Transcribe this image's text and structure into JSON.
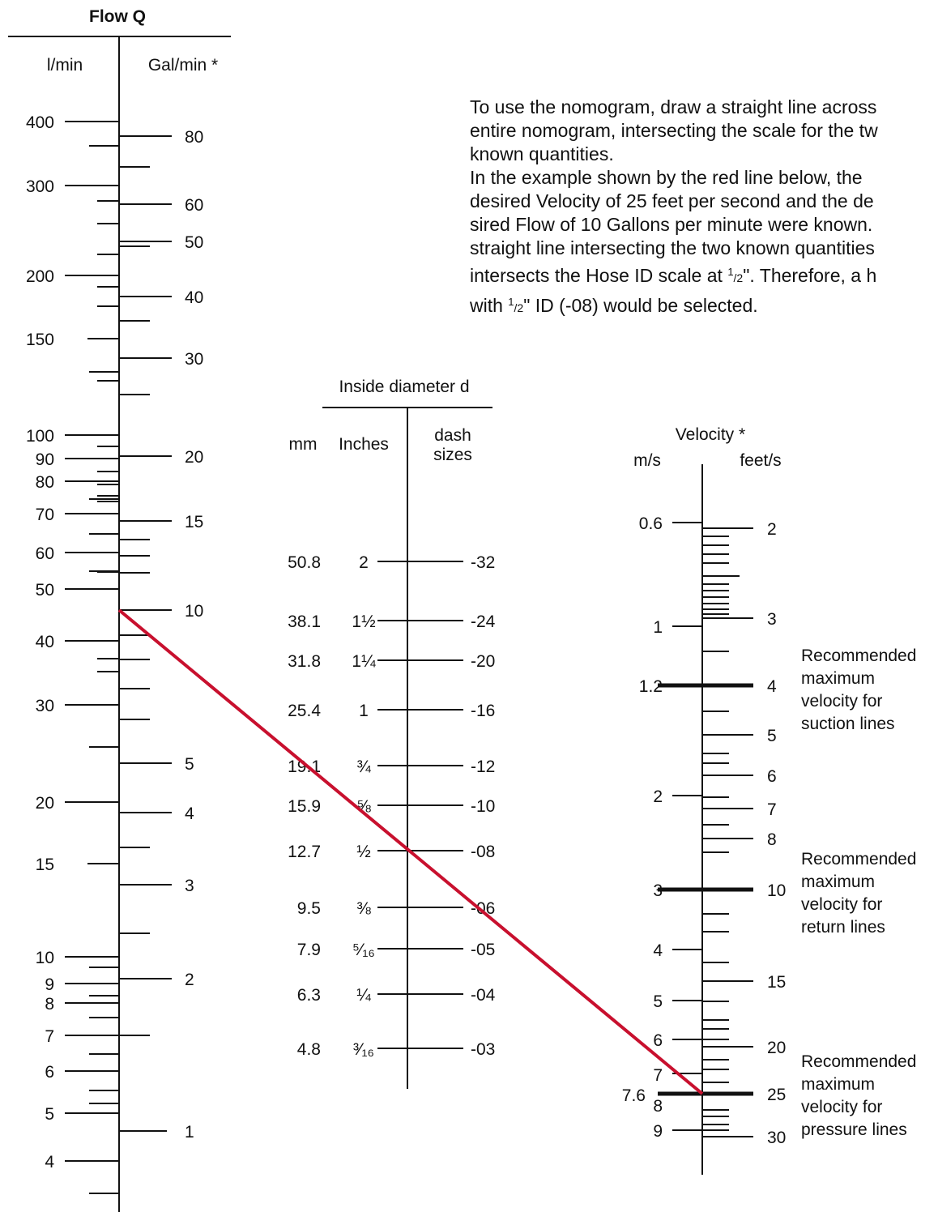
{
  "description": {
    "part1": "To use the nomogram, draw a straight line across\nentire nomogram, intersecting the scale for the tw\nknown quantities.\nIn the example shown by the red line below, the\ndesired Velocity of 25 feet per second and the de\nsired Flow of 10 Gallons per minute were known.\nstraight line intersecting the two known quantities\nintersects the Hose ID scale at ",
    "frac1_num": "1",
    "frac1_den": "/2",
    "part2": "\". Therefore, a h\nwith ",
    "frac2_num": "1",
    "frac2_den": "/2",
    "part3": "\" ID (-08) would be selected."
  },
  "flow_scale": {
    "title": "Flow Q",
    "left_unit": "l/min",
    "right_unit": "Gal/min *",
    "lmin_labels": [
      "400",
      "300",
      "200",
      "150",
      "100",
      "90",
      "80",
      "70",
      "60",
      "50",
      "40",
      "30",
      "20",
      "15",
      "10",
      "9",
      "8",
      "7",
      "6",
      "5",
      "4"
    ],
    "galmin_labels": [
      "80",
      "60",
      "50",
      "40",
      "30",
      "20",
      "15",
      "10",
      "5",
      "4",
      "3",
      "2",
      "1"
    ]
  },
  "diameter_scale": {
    "title": "Inside diameter d",
    "col_mm": "mm",
    "col_inches": "Inches",
    "col_dash_1": "dash",
    "col_dash_2": "sizes",
    "mm": [
      "50.8",
      "38.1",
      "31.8",
      "25.4",
      "19.1",
      "15.9",
      "12.7",
      "9.5",
      "7.9",
      "6.3",
      "4.8"
    ],
    "inches": [
      "2",
      "1½",
      "1¼",
      "1",
      "¾",
      "⅝",
      "½",
      "⅜",
      "⁵⁄₁₆",
      "¼",
      "³⁄₁₆"
    ],
    "dash": [
      "-32",
      "-24",
      "-20",
      "-16",
      "-12",
      "-10",
      "-08",
      "-06",
      "-05",
      "-04",
      "-03"
    ]
  },
  "velocity_scale": {
    "title": "Velocity *",
    "left_unit": "m/s",
    "right_unit": "feet/s",
    "ms_labels": [
      "0.6",
      "1",
      "1.2",
      "2",
      "3",
      "4",
      "5",
      "6",
      "7",
      "7.6",
      "8",
      "9"
    ],
    "fts_labels": [
      "2",
      "3",
      "4",
      "5",
      "6",
      "7",
      "8",
      "10",
      "15",
      "20",
      "25",
      "30"
    ]
  },
  "recommendations": [
    [
      "Recommended",
      "maximum",
      "velocity for",
      "suction lines"
    ],
    [
      "Recommended",
      "maximum",
      "velocity for",
      "return lines"
    ],
    [
      "Recommended",
      "maximum",
      "velocity for",
      "pressure lines"
    ]
  ],
  "example_line": {
    "flow_gal_min": 10,
    "hose_id_inches": "½",
    "dash_size": "-08",
    "velocity_feet_s": 25,
    "color": "#c8102e"
  }
}
